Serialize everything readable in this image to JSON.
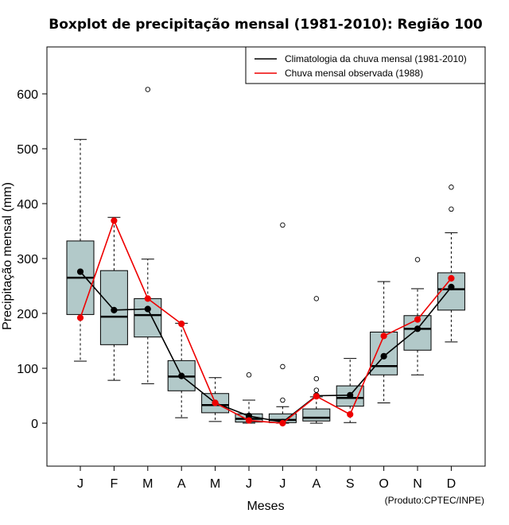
{
  "chart_data": {
    "type": "boxplot",
    "title": "Boxplot de precipitação mensal (1981-2010): Região 100",
    "xlabel": "Meses",
    "ylabel": "Precipitação mensal (mm)",
    "ylim": [
      -78,
      680
    ],
    "yticks": [
      0,
      100,
      200,
      300,
      400,
      500,
      600
    ],
    "categories": [
      "J",
      "F",
      "M",
      "A",
      "M",
      "J",
      "J",
      "A",
      "S",
      "O",
      "N",
      "D"
    ],
    "boxes": [
      {
        "whisker_low": 113,
        "q1": 198,
        "median": 265,
        "q3": 332,
        "whisker_high": 517,
        "outliers": []
      },
      {
        "whisker_low": 78,
        "q1": 143,
        "median": 194,
        "q3": 278,
        "whisker_high": 375,
        "outliers": []
      },
      {
        "whisker_low": 72,
        "q1": 157,
        "median": 197,
        "q3": 227,
        "whisker_high": 299,
        "outliers": [
          608
        ]
      },
      {
        "whisker_low": 10,
        "q1": 59,
        "median": 85,
        "q3": 114,
        "whisker_high": 182,
        "outliers": []
      },
      {
        "whisker_low": 3,
        "q1": 19,
        "median": 33,
        "q3": 54,
        "whisker_high": 83,
        "outliers": []
      },
      {
        "whisker_low": 0,
        "q1": 2,
        "median": 8,
        "q3": 17,
        "whisker_high": 42,
        "outliers": [
          88
        ]
      },
      {
        "whisker_low": 0,
        "q1": 1,
        "median": 6,
        "q3": 17,
        "whisker_high": 30,
        "outliers": [
          361,
          103,
          42
        ]
      },
      {
        "whisker_low": 0,
        "q1": 4,
        "median": 10,
        "q3": 26,
        "whisker_high": 48,
        "outliers": [
          227,
          81,
          60
        ]
      },
      {
        "whisker_low": 1,
        "q1": 31,
        "median": 46,
        "q3": 68,
        "whisker_high": 118,
        "outliers": []
      },
      {
        "whisker_low": 37,
        "q1": 88,
        "median": 104,
        "q3": 166,
        "whisker_high": 258,
        "outliers": []
      },
      {
        "whisker_low": 88,
        "q1": 133,
        "median": 172,
        "q3": 196,
        "whisker_high": 245,
        "outliers": [
          298
        ]
      },
      {
        "whisker_low": 148,
        "q1": 206,
        "median": 244,
        "q3": 274,
        "whisker_high": 347,
        "outliers": [
          430,
          390
        ]
      }
    ],
    "series": [
      {
        "name": "Climatologia da chuva mensal (1981-2010)",
        "color": "#000000",
        "values": [
          276,
          206,
          208,
          86,
          37,
          13,
          2,
          50,
          51,
          122,
          172,
          248
        ]
      },
      {
        "name": "Chuva mensal observada (1988)",
        "color": "#ee0000",
        "values": [
          192,
          369,
          227,
          181,
          37,
          5,
          0,
          49,
          16,
          159,
          189,
          264
        ]
      }
    ],
    "legend_position": "top-right",
    "box_fill": "#b2c9c9",
    "credit": "(Produto:CPTEC/INPE)"
  }
}
